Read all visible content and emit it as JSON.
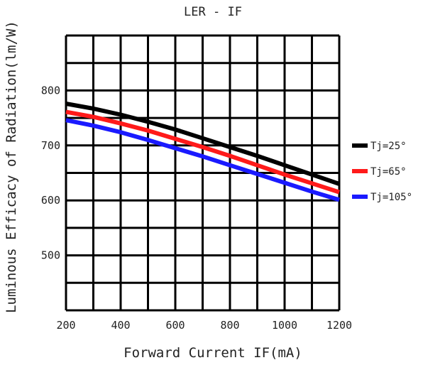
{
  "chart_data": {
    "type": "line",
    "title": "LER - IF",
    "xlabel": "Forward Current IF(mA)",
    "ylabel": "Luminous Efficacy of Radiation(lm/W)",
    "xlim": [
      200,
      1200
    ],
    "ylim": [
      400,
      900
    ],
    "x_ticks": [
      "200",
      "400",
      "600",
      "800",
      "1000",
      "1200"
    ],
    "y_ticks": [
      "500",
      "600",
      "700",
      "800"
    ],
    "grid": true,
    "legend_position": "right",
    "series": [
      {
        "name": "Tj=25°",
        "color": "#000000",
        "x": [
          200,
          300,
          400,
          500,
          600,
          700,
          800,
          900,
          1000,
          1100,
          1200
        ],
        "y": [
          776,
          767,
          756,
          743,
          729,
          713,
          697,
          681,
          664,
          647,
          630
        ]
      },
      {
        "name": "Tj=65°",
        "color": "#ff1a1a",
        "x": [
          200,
          300,
          400,
          500,
          600,
          700,
          800,
          900,
          1000,
          1100,
          1200
        ],
        "y": [
          761,
          752,
          740,
          727,
          712,
          697,
          681,
          664,
          647,
          631,
          615
        ]
      },
      {
        "name": "Tj=105°",
        "color": "#1a1aff",
        "x": [
          200,
          300,
          400,
          500,
          600,
          700,
          800,
          900,
          1000,
          1100,
          1200
        ],
        "y": [
          746,
          736,
          724,
          710,
          695,
          680,
          664,
          648,
          632,
          616,
          601
        ]
      }
    ]
  }
}
